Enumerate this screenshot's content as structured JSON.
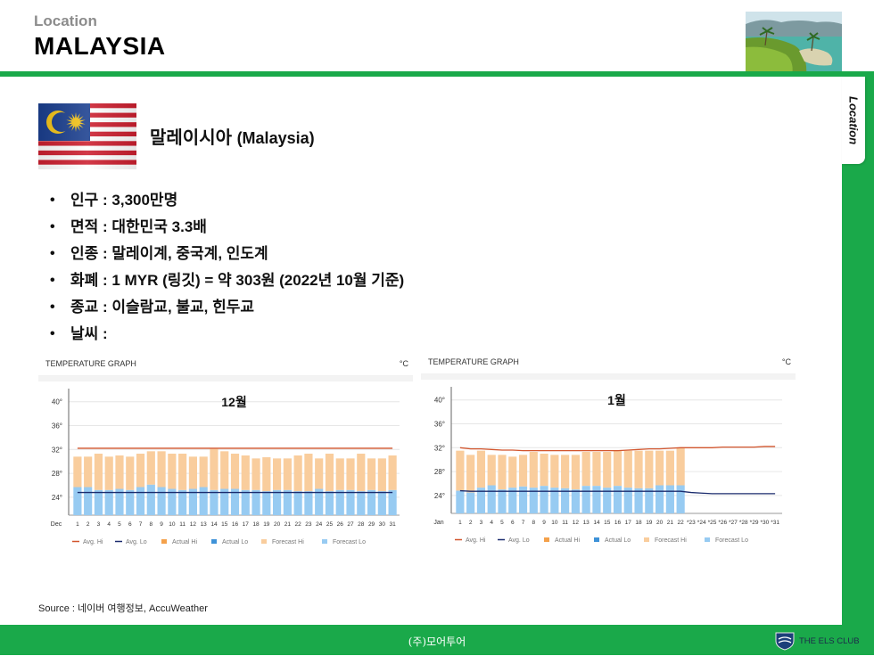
{
  "header": {
    "subtitle": "Location",
    "title": "MALAYSIA"
  },
  "side_tab": {
    "label": "Location"
  },
  "country": {
    "name_ko": "말레이시아",
    "name_en": "(Malaysia)"
  },
  "facts": [
    {
      "label": "인구",
      "value": "3,300만명"
    },
    {
      "label": "면적",
      "value": "대한민국 3.3배"
    },
    {
      "label": "인종",
      "value": "말레이계, 중국계, 인도계"
    },
    {
      "label": "화폐",
      "value": "1 MYR (링깃) = 약 303원 (2022년 10월 기준)"
    },
    {
      "label": "종교",
      "value": "이슬람교, 불교, 힌두교"
    },
    {
      "label": "날씨",
      "value": ""
    }
  ],
  "source": "Source : 네이버 여행정보, AccuWeather",
  "footer": {
    "company": "(주)모어투어",
    "logo_text": "THE ELS CLUB"
  },
  "colors": {
    "accent_green": "#1aa94a",
    "actual_hi": "#f4a14b",
    "forecast_hi": "#f9cd9d",
    "actual_lo": "#3e92d8",
    "forecast_lo": "#97cbf2",
    "avg_hi": "#d2552d",
    "avg_lo": "#1b2c6e"
  },
  "chart_data": [
    {
      "type": "bar",
      "panel_title": "TEMPERATURE GRAPH",
      "unit": "°C",
      "title": "12월",
      "month_label": "Dec",
      "x": [
        "1",
        "2",
        "3",
        "4",
        "5",
        "6",
        "7",
        "8",
        "9",
        "10",
        "11",
        "12",
        "13",
        "14",
        "15",
        "16",
        "17",
        "18",
        "19",
        "20",
        "21",
        "22",
        "23",
        "24",
        "25",
        "26",
        "27",
        "28",
        "29",
        "30",
        "31"
      ],
      "ylim": [
        21,
        41
      ],
      "yticks": [
        "40°",
        "36°",
        "32°",
        "28°",
        "24°"
      ],
      "ytick_values": [
        40,
        36,
        32,
        28,
        24
      ],
      "legend": [
        "Avg. Hi",
        "Avg. Lo",
        "Actual Hi",
        "Actual Lo",
        "Forecast Hi",
        "Forecast Lo"
      ],
      "avg_hi": 32.2,
      "avg_lo": 24.8,
      "series": [
        {
          "name": "Actual Hi",
          "values": [
            30.8,
            30.8,
            31.3,
            30.8,
            31,
            30.8,
            31.3,
            31.7,
            31.7,
            31.3,
            31.3,
            30.8,
            30.8,
            32.1,
            31.7,
            31.3,
            31,
            30.5,
            30.7,
            30.5,
            30.5,
            31,
            31.3,
            30.5,
            31.3,
            30.5,
            30.5,
            31.3,
            30.5,
            30.5,
            31
          ]
        },
        {
          "name": "Actual Lo",
          "values": [
            25.7,
            25.7,
            25.2,
            25.2,
            25.4,
            25.2,
            25.7,
            26.1,
            25.7,
            25.4,
            25.2,
            25.4,
            25.7,
            25.2,
            25.4,
            25.4,
            25.2,
            25.2,
            25,
            25.2,
            25.2,
            25,
            25,
            25.4,
            25,
            25.2,
            25.2,
            25,
            25.2,
            25,
            25.2
          ]
        },
        {
          "name": "Avg. Hi",
          "values": [
            32.2,
            32.2,
            32.2,
            32.2,
            32.2,
            32.2,
            32.2,
            32.2,
            32.2,
            32.2,
            32.2,
            32.2,
            32.2,
            32.2,
            32.2,
            32.2,
            32.2,
            32.2,
            32.2,
            32.2,
            32.2,
            32.2,
            32.2,
            32.2,
            32.2,
            32.2,
            32.2,
            32.2,
            32.2,
            32.2,
            32.2
          ]
        },
        {
          "name": "Avg. Lo",
          "values": [
            24.8,
            24.8,
            24.8,
            24.8,
            24.8,
            24.8,
            24.8,
            24.8,
            24.8,
            24.8,
            24.8,
            24.8,
            24.8,
            24.8,
            24.8,
            24.8,
            24.8,
            24.8,
            24.8,
            24.8,
            24.8,
            24.8,
            24.8,
            24.8,
            24.8,
            24.8,
            24.8,
            24.8,
            24.8,
            24.8,
            24.8
          ]
        }
      ]
    },
    {
      "type": "bar",
      "panel_title": "TEMPERATURE GRAPH",
      "unit": "°C",
      "title": "1월",
      "month_label": "Jan",
      "x": [
        "1",
        "2",
        "3",
        "4",
        "5",
        "6",
        "7",
        "8",
        "9",
        "10",
        "11",
        "12",
        "13",
        "14",
        "15",
        "16",
        "17",
        "18",
        "19",
        "20",
        "21",
        "22",
        "*23",
        "*24",
        "*25",
        "*26",
        "*27",
        "*28",
        "*29",
        "*30",
        "*31"
      ],
      "ylim": [
        21,
        41
      ],
      "yticks": [
        "40°",
        "36°",
        "32°",
        "28°",
        "24°"
      ],
      "ytick_values": [
        40,
        36,
        32,
        28,
        24
      ],
      "legend": [
        "Avg. Hi",
        "Avg. Lo",
        "Actual Hi",
        "Actual Lo",
        "Forecast Hi",
        "Forecast Lo"
      ],
      "series": [
        {
          "name": "Actual Hi",
          "values": [
            31.5,
            30.8,
            31.5,
            30.8,
            30.8,
            30.5,
            30.8,
            31.3,
            31,
            30.8,
            30.8,
            30.8,
            31.3,
            31.3,
            31.3,
            31.5,
            31.5,
            31.5,
            31.5,
            31.5,
            31.5,
            31.9,
            null,
            null,
            null,
            null,
            null,
            null,
            null,
            null,
            null
          ]
        },
        {
          "name": "Actual Lo",
          "values": [
            24.8,
            24.5,
            25.3,
            25.7,
            25,
            25.3,
            25.5,
            25.3,
            25.6,
            25.3,
            25.2,
            25,
            25.6,
            25.6,
            25.3,
            25.6,
            25.3,
            25.2,
            25.2,
            25.7,
            25.7,
            25.7,
            null,
            null,
            null,
            null,
            null,
            null,
            null,
            null,
            null
          ]
        },
        {
          "name": "Avg. Hi",
          "values": [
            32,
            31.8,
            31.8,
            31.7,
            31.6,
            31.6,
            31.5,
            31.5,
            31.5,
            31.5,
            31.5,
            31.5,
            31.5,
            31.5,
            31.5,
            31.5,
            31.6,
            31.7,
            31.8,
            31.8,
            31.9,
            32,
            32,
            32,
            32,
            32.1,
            32.1,
            32.1,
            32.1,
            32.2,
            32.2
          ]
        },
        {
          "name": "Avg. Lo",
          "values": [
            24.8,
            24.7,
            24.7,
            24.7,
            24.7,
            24.7,
            24.7,
            24.7,
            24.7,
            24.7,
            24.7,
            24.7,
            24.7,
            24.7,
            24.7,
            24.7,
            24.7,
            24.7,
            24.7,
            24.7,
            24.7,
            24.7,
            24.5,
            24.4,
            24.3,
            24.3,
            24.3,
            24.3,
            24.3,
            24.3,
            24.3
          ]
        }
      ]
    }
  ]
}
